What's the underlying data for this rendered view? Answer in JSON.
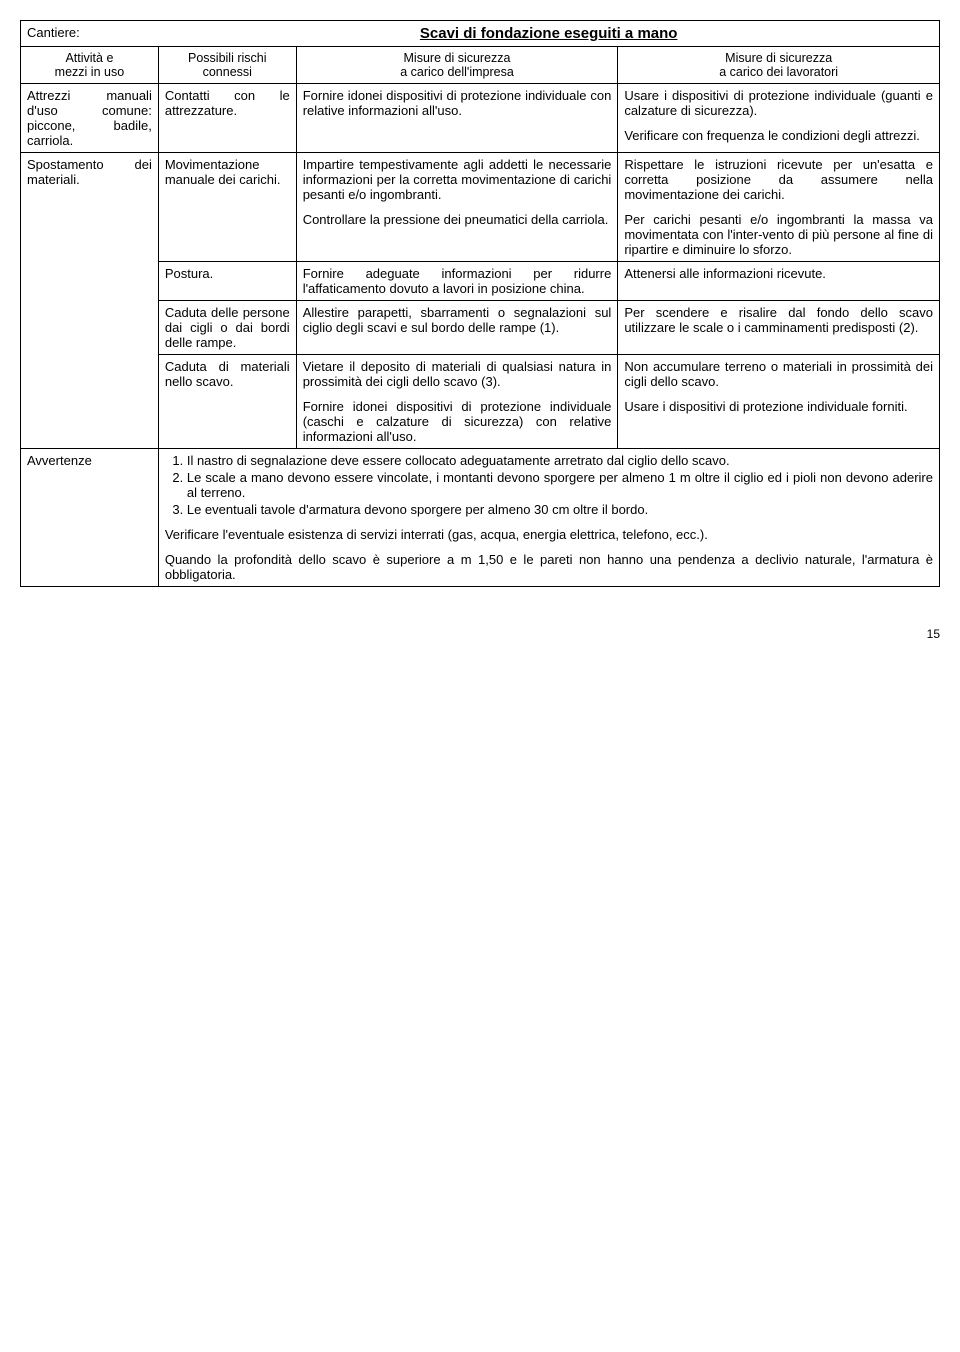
{
  "title": "Scavi di fondazione eseguiti a mano",
  "cantiere_label": "Cantiere:",
  "headers": {
    "col0_l1": "Attività e",
    "col0_l2": "mezzi in uso",
    "col1_l1": "Possibili rischi",
    "col1_l2": "connessi",
    "col2_l1": "Misure di sicurezza",
    "col2_l2": "a carico dell'impresa",
    "col3_l1": "Misure di sicurezza",
    "col3_l2": "a carico dei lavoratori"
  },
  "rows": [
    {
      "c0": "Attrezzi manuali d'uso comune: piccone, badile, carriola.",
      "c1": "Contatti con le attrezzature.",
      "c2": "Fornire idonei dispositivi di protezione individuale con relative informazioni all'uso.",
      "c3a": "Usare i dispositivi di protezione individuale (guanti e calzature di sicurezza).",
      "c3b": "Verificare con frequenza le condizioni degli attrezzi."
    },
    {
      "c0": "Spostamento dei materiali.",
      "c1": "Movimentazione manuale dei carichi.",
      "c2a": "Impartire tempestivamente agli addetti le necessarie informazioni per la corretta movimentazione di carichi pesanti e/o ingombranti.",
      "c2b": "Controllare la pressione dei pneumatici della carriola.",
      "c3a": "Rispettare le istruzioni ricevute per un'esatta e corretta posizione da assumere nella movimentazione dei carichi.",
      "c3b": "Per carichi pesanti e/o ingombranti la massa va movimentata con l'inter-vento di più persone al fine di ripartire e diminuire lo sforzo."
    },
    {
      "c1": "Postura.",
      "c2": "Fornire adeguate informazioni per ridurre l'affaticamento dovuto a lavori in posizione china.",
      "c3": "Attenersi alle informazioni ricevute."
    },
    {
      "c1": "Caduta delle persone dai cigli o dai bordi delle rampe.",
      "c2": "Allestire parapetti, sbarramenti o segnalazioni sul ciglio degli scavi e sul bordo delle rampe (1).",
      "c3": "Per scendere e risalire dal fondo dello scavo utilizzare le scale o i camminamenti predisposti (2)."
    },
    {
      "c1": "Caduta di materiali nello scavo.",
      "c2a": "Vietare il deposito di materiali di qualsiasi natura in prossimità dei cigli dello scavo (3).",
      "c2b": "Fornire idonei dispositivi di protezione individuale (caschi e calzature di sicurezza) con relative informazioni all'uso.",
      "c3a": "Non accumulare terreno o materiali in prossimità dei cigli dello scavo.",
      "c3b": "Usare i dispositivi di protezione individuale forniti."
    }
  ],
  "avvertenze": {
    "label": "Avvertenze",
    "n1": "Il nastro di segnalazione deve essere collocato adeguatamente arretrato dal ciglio dello scavo.",
    "n2": "Le scale a mano devono essere vincolate, i montanti devono sporgere per almeno 1 m oltre il ciglio ed i pioli non devono aderire al terreno.",
    "n3": "Le eventuali tavole d'armatura devono sporgere per almeno 30 cm oltre il bordo.",
    "p1": "Verificare l'eventuale esistenza di servizi interrati (gas, acqua, energia elettrica, telefono, ecc.).",
    "p2": "Quando la profondità dello scavo è superiore a m 1,50 e le pareti non hanno una pendenza a declivio naturale, l'armatura è obbligatoria."
  },
  "page_number": "15"
}
